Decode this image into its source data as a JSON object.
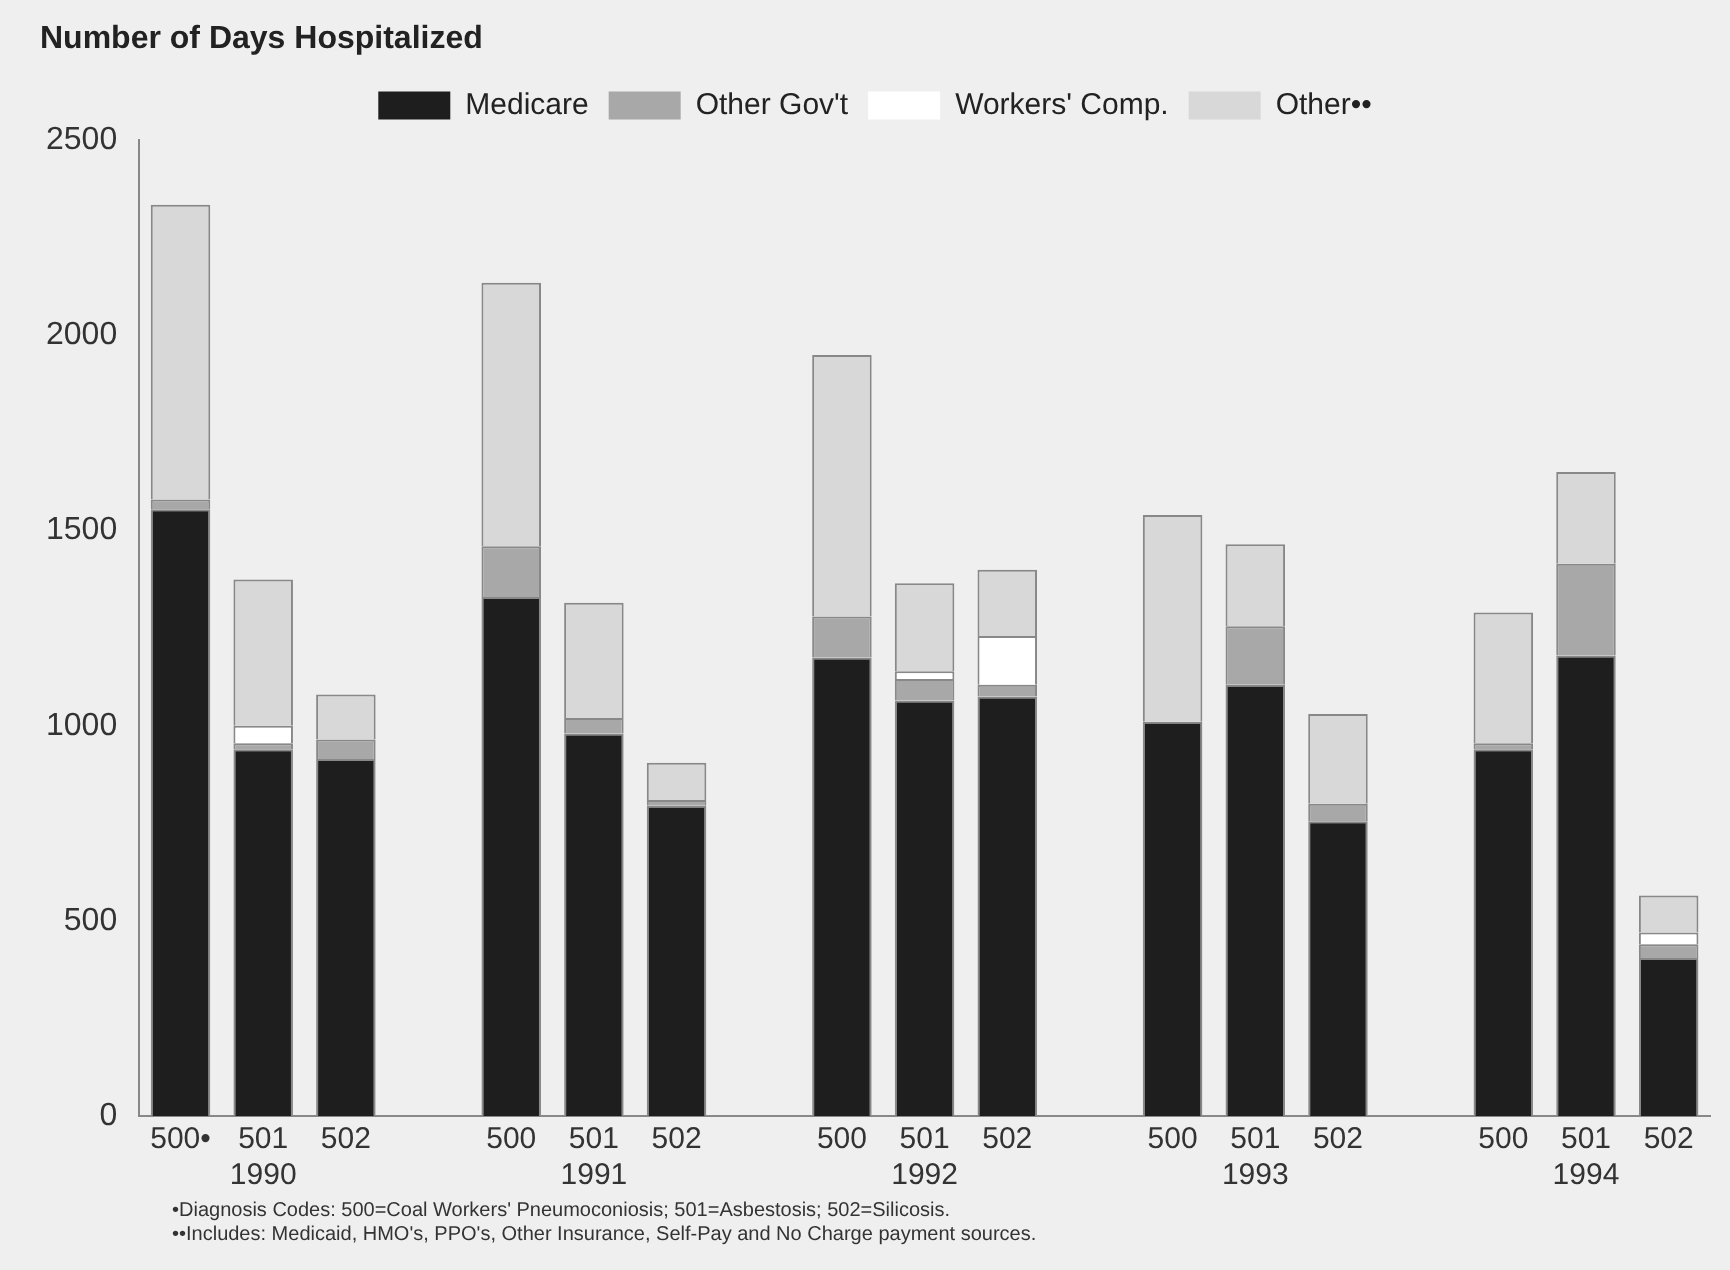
{
  "chart_data": {
    "type": "bar",
    "stacked": true,
    "title": "Number of Days Hospitalized",
    "categories": [
      "500•",
      "501\n1990",
      "502",
      null,
      "500",
      "501\n1991",
      "502",
      null,
      "500",
      "501\n1992",
      "502",
      null,
      "500",
      "501\n1993",
      "502",
      null,
      "500",
      "501\n1994",
      "502"
    ],
    "series": [
      {
        "name": "Medicare",
        "color": "#1e1e1e",
        "values": [
          1555,
          940,
          915,
          null,
          1330,
          980,
          795,
          null,
          1175,
          1065,
          1075,
          null,
          1010,
          1105,
          755,
          null,
          940,
          1180,
          405
        ]
      },
      {
        "name": "Other Gov't",
        "color": "#a8a8a8",
        "values": [
          25,
          15,
          50,
          null,
          130,
          40,
          15,
          null,
          105,
          55,
          30,
          null,
          0,
          150,
          45,
          null,
          15,
          235,
          35
        ]
      },
      {
        "name": "Workers' Comp.",
        "color": "#ffffff",
        "values": [
          0,
          45,
          0,
          null,
          0,
          0,
          0,
          null,
          0,
          20,
          125,
          null,
          0,
          0,
          0,
          null,
          0,
          0,
          30
        ]
      },
      {
        "name": "Other••",
        "color": "#d8d8d8",
        "values": [
          755,
          375,
          115,
          null,
          675,
          295,
          95,
          null,
          670,
          225,
          170,
          null,
          530,
          210,
          230,
          null,
          335,
          235,
          95
        ]
      }
    ],
    "ylim": [
      0,
      2500
    ],
    "yticks": [
      0,
      500,
      1000,
      1500,
      2000,
      2500
    ],
    "grid": false,
    "legend": "top",
    "annotations": [
      "•Diagnosis Codes:  500=Coal Workers' Pneumoconiosis; 501=Asbestosis; 502=Silicosis.",
      "••Includes:  Medicaid, HMO's, PPO's, Other Insurance, Self-Pay and No Charge payment sources."
    ]
  }
}
